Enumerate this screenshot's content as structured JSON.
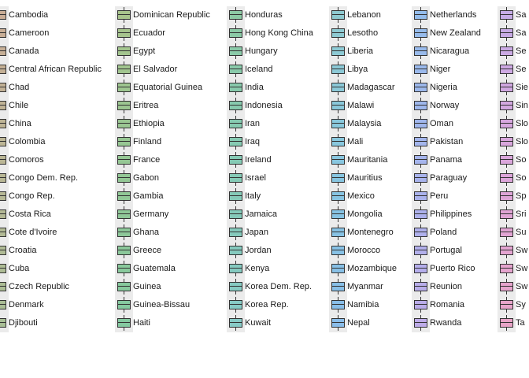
{
  "chart_data": {
    "type": "boxplot-legend",
    "legend": {
      "placement": "right",
      "columns": [
        {
          "keys_visible": true,
          "entries": [
            {
              "label": "Cambodia",
              "color": "#c9ad96"
            },
            {
              "label": "Cameroon",
              "color": "#c8ae96"
            },
            {
              "label": "Canada",
              "color": "#c6af96"
            },
            {
              "label": "Central African Republic",
              "color": "#c4b095"
            },
            {
              "label": "Chad",
              "color": "#c2b195"
            },
            {
              "label": "Chile",
              "color": "#c0b395"
            },
            {
              "label": "China",
              "color": "#beb495"
            },
            {
              "label": "Colombia",
              "color": "#bcb595"
            },
            {
              "label": "Comoros",
              "color": "#bab695"
            },
            {
              "label": "Congo Dem. Rep.",
              "color": "#b8b795"
            },
            {
              "label": "Congo Rep.",
              "color": "#b6b895"
            },
            {
              "label": "Costa Rica",
              "color": "#b4b995"
            },
            {
              "label": "Cote d'Ivoire",
              "color": "#b2ba95"
            },
            {
              "label": "Croatia",
              "color": "#b0bb95"
            },
            {
              "label": "Cuba",
              "color": "#aebc95"
            },
            {
              "label": "Czech Republic",
              "color": "#acbd95"
            },
            {
              "label": "Denmark",
              "color": "#aabd95"
            },
            {
              "label": "Djibouti",
              "color": "#a8be95"
            }
          ]
        },
        {
          "keys_visible": true,
          "entries": [
            {
              "label": "Dominican Republic",
              "color": "#a8c48c"
            },
            {
              "label": "Ecuador",
              "color": "#a6c48d"
            },
            {
              "label": "Egypt",
              "color": "#a3c58e"
            },
            {
              "label": "El Salvador",
              "color": "#a1c58f"
            },
            {
              "label": "Equatorial Guinea",
              "color": "#9ec690"
            },
            {
              "label": "Eritrea",
              "color": "#9cc691"
            },
            {
              "label": "Ethiopia",
              "color": "#9ac692"
            },
            {
              "label": "Finland",
              "color": "#97c793"
            },
            {
              "label": "France",
              "color": "#95c794"
            },
            {
              "label": "Gabon",
              "color": "#93c795"
            },
            {
              "label": "Gambia",
              "color": "#91c896"
            },
            {
              "label": "Germany",
              "color": "#8fc898"
            },
            {
              "label": "Ghana",
              "color": "#8dc899"
            },
            {
              "label": "Greece",
              "color": "#8bc89a"
            },
            {
              "label": "Guatemala",
              "color": "#89c99c"
            },
            {
              "label": "Guinea",
              "color": "#87c99d"
            },
            {
              "label": "Guinea-Bissau",
              "color": "#85c99f"
            },
            {
              "label": "Haiti",
              "color": "#84c9a0"
            }
          ]
        },
        {
          "keys_visible": true,
          "entries": [
            {
              "label": "Honduras",
              "color": "#8ccaa4"
            },
            {
              "label": "Hong Kong China",
              "color": "#8bcaa6"
            },
            {
              "label": "Hungary",
              "color": "#8acaa8"
            },
            {
              "label": "Iceland",
              "color": "#89caaa"
            },
            {
              "label": "India",
              "color": "#88caac"
            },
            {
              "label": "Indonesia",
              "color": "#87caae"
            },
            {
              "label": "Iran",
              "color": "#86cab0"
            },
            {
              "label": "Iraq",
              "color": "#86cab2"
            },
            {
              "label": "Ireland",
              "color": "#85cab4"
            },
            {
              "label": "Israel",
              "color": "#85cab6"
            },
            {
              "label": "Italy",
              "color": "#85cab8"
            },
            {
              "label": "Jamaica",
              "color": "#85caba"
            },
            {
              "label": "Japan",
              "color": "#85cabc"
            },
            {
              "label": "Jordan",
              "color": "#85cabe"
            },
            {
              "label": "Kenya",
              "color": "#85cac0"
            },
            {
              "label": "Korea Dem. Rep.",
              "color": "#86cac2"
            },
            {
              "label": "Korea Rep.",
              "color": "#86cac4"
            },
            {
              "label": "Kuwait",
              "color": "#87cac6"
            }
          ]
        },
        {
          "keys_visible": true,
          "entries": [
            {
              "label": "Lebanon",
              "color": "#8fcad0"
            },
            {
              "label": "Lesotho",
              "color": "#8ecad2"
            },
            {
              "label": "Liberia",
              "color": "#8dcad4"
            },
            {
              "label": "Libya",
              "color": "#8cc9d6"
            },
            {
              "label": "Madagascar",
              "color": "#8bc9d8"
            },
            {
              "label": "Malawi",
              "color": "#8ac8da"
            },
            {
              "label": "Malaysia",
              "color": "#89c8dc"
            },
            {
              "label": "Mali",
              "color": "#88c7dd"
            },
            {
              "label": "Mauritania",
              "color": "#88c6df"
            },
            {
              "label": "Mauritius",
              "color": "#87c5e0"
            },
            {
              "label": "Mexico",
              "color": "#87c4e2"
            },
            {
              "label": "Mongolia",
              "color": "#87c3e3"
            },
            {
              "label": "Montenegro",
              "color": "#87c2e4"
            },
            {
              "label": "Morocco",
              "color": "#87c1e5"
            },
            {
              "label": "Mozambique",
              "color": "#88c0e6"
            },
            {
              "label": "Myanmar",
              "color": "#88bfe7"
            },
            {
              "label": "Namibia",
              "color": "#89bee8"
            },
            {
              "label": "Nepal",
              "color": "#8abde9"
            }
          ]
        },
        {
          "keys_visible": true,
          "entries": [
            {
              "label": "Netherlands",
              "color": "#94bceb"
            },
            {
              "label": "New Zealand",
              "color": "#96bbeb"
            },
            {
              "label": "Nicaragua",
              "color": "#98baeb"
            },
            {
              "label": "Niger",
              "color": "#9ab9ec"
            },
            {
              "label": "Nigeria",
              "color": "#9cb8ec"
            },
            {
              "label": "Norway",
              "color": "#9eb7ec"
            },
            {
              "label": "Oman",
              "color": "#a0b6ec"
            },
            {
              "label": "Pakistan",
              "color": "#a3b5ec"
            },
            {
              "label": "Panama",
              "color": "#a5b4ec"
            },
            {
              "label": "Paraguay",
              "color": "#a8b3ec"
            },
            {
              "label": "Peru",
              "color": "#aab2ec"
            },
            {
              "label": "Philippines",
              "color": "#adb1ec"
            },
            {
              "label": "Poland",
              "color": "#afb0ec"
            },
            {
              "label": "Portugal",
              "color": "#b2afeb"
            },
            {
              "label": "Puerto Rico",
              "color": "#b5aeeb"
            },
            {
              "label": "Reunion",
              "color": "#b8adea"
            },
            {
              "label": "Romania",
              "color": "#baace9"
            },
            {
              "label": "Rwanda",
              "color": "#bdabe8"
            }
          ]
        },
        {
          "keys_visible": true,
          "entries": [
            {
              "label": "Sa",
              "color": "#c6ace6"
            },
            {
              "label": "Sa",
              "color": "#c8abe5"
            },
            {
              "label": "Se",
              "color": "#cbaae4"
            },
            {
              "label": "Se",
              "color": "#cea9e3"
            },
            {
              "label": "Sie",
              "color": "#d1a8e1"
            },
            {
              "label": "Sin",
              "color": "#d3a8e0"
            },
            {
              "label": "Slo",
              "color": "#d6a7de"
            },
            {
              "label": "Slo",
              "color": "#d8a6dc"
            },
            {
              "label": "So",
              "color": "#daa6db"
            },
            {
              "label": "So",
              "color": "#dca5d9"
            },
            {
              "label": "Sp",
              "color": "#dea5d7"
            },
            {
              "label": "Sri",
              "color": "#e0a5d5"
            },
            {
              "label": "Su",
              "color": "#e2a4d3"
            },
            {
              "label": "Sw",
              "color": "#e4a4d1"
            },
            {
              "label": "Sw",
              "color": "#e5a4ce"
            },
            {
              "label": "Sw",
              "color": "#e6a4cc"
            },
            {
              "label": "Sy",
              "color": "#e7a4ca"
            },
            {
              "label": "Ta",
              "color": "#e8a4c7"
            }
          ]
        }
      ]
    }
  }
}
